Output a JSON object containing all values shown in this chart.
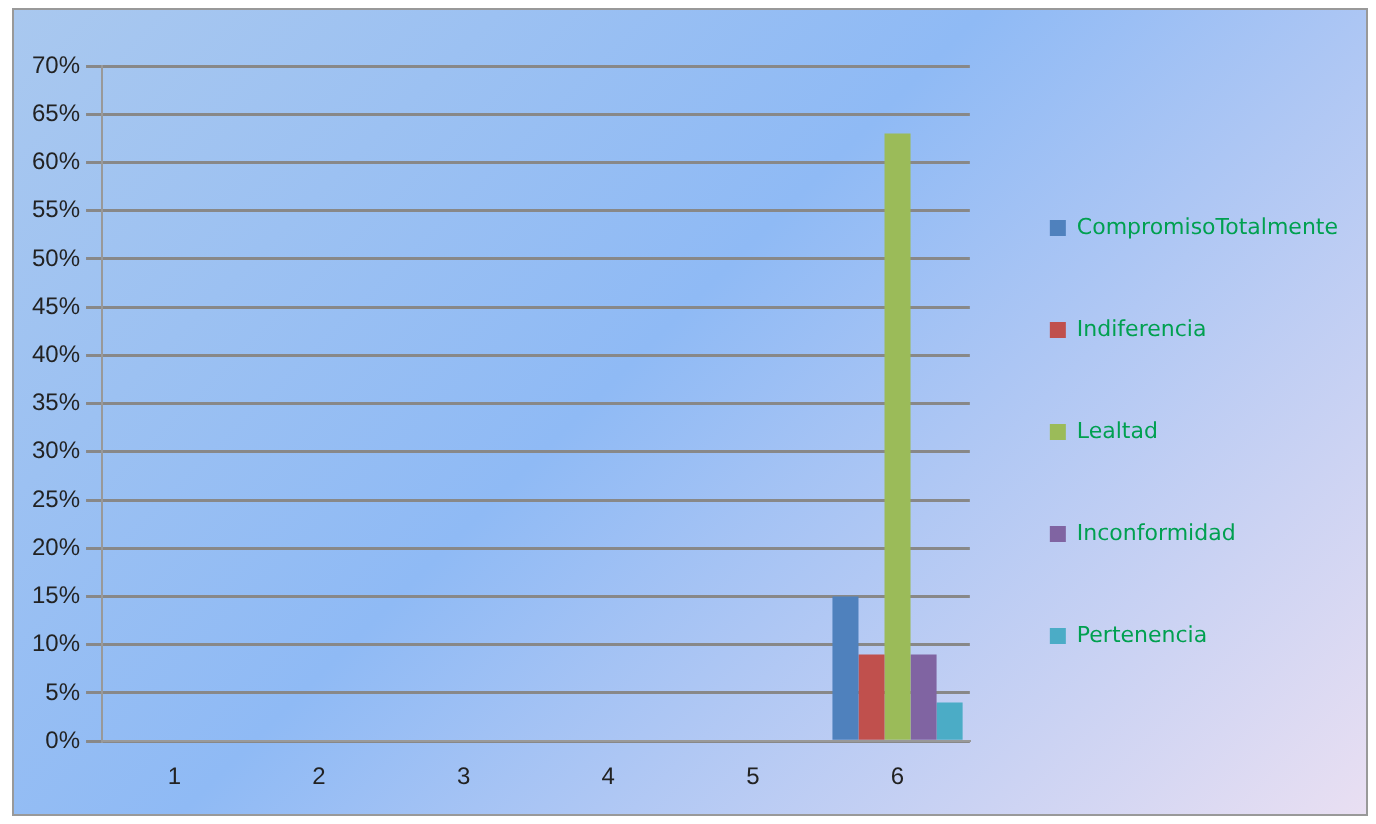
{
  "chart_data": {
    "type": "bar",
    "categories": [
      "1",
      "2",
      "3",
      "4",
      "5",
      "6"
    ],
    "series": [
      {
        "name": "CompromisoTotalmente",
        "color": "#4f81bd",
        "values": [
          0,
          0,
          0,
          0,
          0,
          15
        ]
      },
      {
        "name": "Indiferencia",
        "color": "#c0504d",
        "values": [
          0,
          0,
          0,
          0,
          0,
          9
        ]
      },
      {
        "name": "Lealtad",
        "color": "#9bbb59",
        "values": [
          0,
          0,
          0,
          0,
          0,
          63
        ]
      },
      {
        "name": "Inconformidad",
        "color": "#8064a2",
        "values": [
          0,
          0,
          0,
          0,
          0,
          9
        ]
      },
      {
        "name": "Pertenencia",
        "color": "#4bacc6",
        "values": [
          0,
          0,
          0,
          0,
          0,
          4
        ]
      }
    ],
    "ylim": [
      0,
      70
    ],
    "yticks": [
      {
        "value": 0,
        "label": "0%"
      },
      {
        "value": 5,
        "label": "5%"
      },
      {
        "value": 10,
        "label": "10%"
      },
      {
        "value": 15,
        "label": "15%"
      },
      {
        "value": 20,
        "label": "20%"
      },
      {
        "value": 25,
        "label": "25%"
      },
      {
        "value": 30,
        "label": "30%"
      },
      {
        "value": 35,
        "label": "35%"
      },
      {
        "value": 40,
        "label": "40%"
      },
      {
        "value": 45,
        "label": "45%"
      },
      {
        "value": 50,
        "label": "50%"
      },
      {
        "value": 55,
        "label": "55%"
      },
      {
        "value": 60,
        "label": "60%"
      },
      {
        "value": 65,
        "label": "65%"
      },
      {
        "value": 70,
        "label": "70%"
      }
    ],
    "grid": "y",
    "legend": "right"
  }
}
